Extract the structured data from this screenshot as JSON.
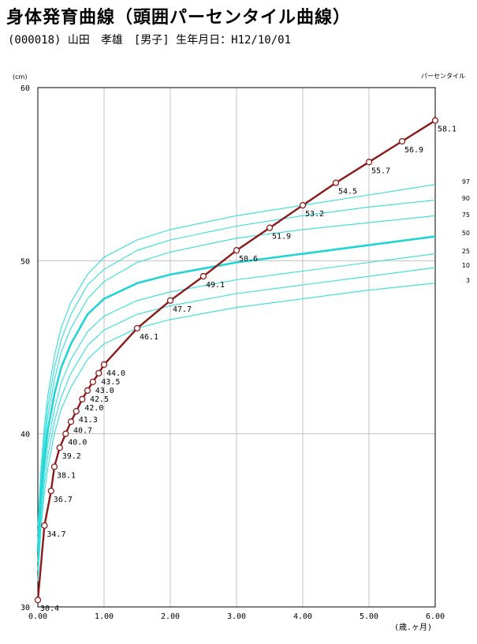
{
  "header": {
    "title": "身体発育曲線（頭囲パーセンタイル曲線）",
    "patient_info": "(000018) 山田　孝雄　[男子] 生年月日：H12/10/01"
  },
  "chart_data": {
    "type": "line",
    "title": "身体発育曲線（頭囲パーセンタイル曲線）",
    "y_unit": "(cm)",
    "x_unit": "(歳.ヶ月)",
    "percentile_title": "パーセンタイル",
    "xlim": [
      0,
      6
    ],
    "ylim": [
      30,
      60
    ],
    "x_ticks": [
      "0.00",
      "1.00",
      "2.00",
      "3.00",
      "4.00",
      "5.00",
      "6.00"
    ],
    "y_ticks": [
      "30",
      "40",
      "50",
      "60"
    ],
    "grid": true,
    "colors": {
      "percentile": "#33dddd",
      "median": "#22d4d4",
      "patient": "#8b1a1a",
      "grid": "#c0c0c0"
    },
    "percentiles": [
      {
        "name": "97",
        "x": [
          0,
          0.05,
          0.1,
          0.15,
          0.25,
          0.35,
          0.5,
          0.75,
          1,
          1.5,
          2,
          3,
          4,
          5,
          6
        ],
        "y": [
          34.7,
          38.2,
          40.5,
          42.2,
          44.5,
          46.1,
          47.6,
          49.2,
          50.2,
          51.2,
          51.8,
          52.6,
          53.2,
          53.8,
          54.4
        ]
      },
      {
        "name": "90",
        "x": [
          0,
          0.05,
          0.1,
          0.15,
          0.25,
          0.35,
          0.5,
          0.75,
          1,
          1.5,
          2,
          3,
          4,
          5,
          6
        ],
        "y": [
          34.2,
          37.6,
          39.9,
          41.6,
          43.8,
          45.4,
          46.9,
          48.6,
          49.5,
          50.6,
          51.2,
          52.0,
          52.6,
          53.1,
          53.5
        ]
      },
      {
        "name": "75",
        "x": [
          0,
          0.05,
          0.1,
          0.15,
          0.25,
          0.35,
          0.5,
          0.75,
          1,
          1.5,
          2,
          3,
          4,
          5,
          6
        ],
        "y": [
          33.7,
          37.1,
          39.3,
          41.0,
          43.1,
          44.7,
          46.1,
          47.8,
          48.8,
          49.9,
          50.5,
          51.3,
          51.8,
          52.2,
          52.6
        ]
      },
      {
        "name": "50",
        "x": [
          0,
          0.05,
          0.1,
          0.15,
          0.25,
          0.35,
          0.5,
          0.75,
          1,
          1.5,
          2,
          3,
          4,
          5,
          6
        ],
        "y": [
          33.2,
          36.5,
          38.6,
          40.2,
          42.3,
          43.8,
          45.2,
          46.9,
          47.8,
          48.7,
          49.2,
          49.9,
          50.4,
          50.9,
          51.4
        ]
      },
      {
        "name": "25",
        "x": [
          0,
          0.05,
          0.1,
          0.15,
          0.25,
          0.35,
          0.5,
          0.75,
          1,
          1.5,
          2,
          3,
          4,
          5,
          6
        ],
        "y": [
          32.6,
          35.9,
          37.9,
          39.4,
          41.4,
          42.9,
          44.3,
          45.9,
          46.8,
          47.7,
          48.2,
          48.9,
          49.4,
          49.9,
          50.4
        ]
      },
      {
        "name": "10",
        "x": [
          0,
          0.05,
          0.1,
          0.15,
          0.25,
          0.35,
          0.5,
          0.75,
          1,
          1.5,
          2,
          3,
          4,
          5,
          6
        ],
        "y": [
          32.1,
          35.3,
          37.3,
          38.7,
          40.7,
          42.1,
          43.5,
          45.1,
          46.0,
          46.9,
          47.4,
          48.1,
          48.6,
          49.1,
          49.6
        ]
      },
      {
        "name": "3",
        "x": [
          0,
          0.05,
          0.1,
          0.15,
          0.25,
          0.35,
          0.5,
          0.75,
          1,
          1.5,
          2,
          3,
          4,
          5,
          6
        ],
        "y": [
          31.5,
          34.7,
          36.6,
          38.0,
          40.0,
          41.4,
          42.7,
          44.3,
          45.2,
          46.1,
          46.6,
          47.3,
          47.8,
          48.3,
          48.7
        ]
      }
    ],
    "patient": {
      "x": [
        0,
        0.1,
        0.2,
        0.25,
        0.33,
        0.42,
        0.5,
        0.58,
        0.67,
        0.75,
        0.83,
        0.92,
        1.0,
        1.5,
        2.0,
        2.5,
        3.0,
        3.5,
        4.0,
        4.5,
        5.0,
        5.5,
        6.0
      ],
      "y": [
        30.4,
        34.7,
        36.7,
        38.1,
        39.2,
        40.0,
        40.7,
        41.3,
        42.0,
        42.5,
        43.0,
        43.5,
        44.0,
        46.1,
        47.7,
        49.1,
        50.6,
        51.9,
        53.2,
        54.5,
        55.7,
        56.9,
        58.1
      ],
      "labels": [
        "30.4",
        "34.7",
        "36.7",
        "38.1",
        "39.2",
        "40.0",
        "40.7",
        "41.3",
        "42.0",
        "42.5",
        "43.0",
        "43.5",
        "44.0",
        "46.1",
        "47.7",
        "49.1",
        "50.6",
        "51.9",
        "53.2",
        "54.5",
        "55.7",
        "56.9",
        "58.1"
      ]
    }
  }
}
